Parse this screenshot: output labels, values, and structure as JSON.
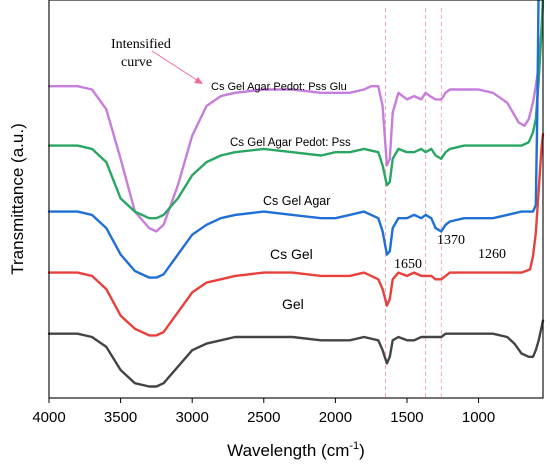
{
  "chart_data": {
    "type": "line",
    "xlabel": "Wavelength (cm",
    "xlabel_sup": "-1",
    "xlabel_close": ")",
    "ylabel": "Transmittance (a.u.)",
    "xlim": [
      4000,
      550
    ],
    "x_reversed": true,
    "x_ticks": [
      4000,
      3500,
      3000,
      2500,
      2000,
      1500,
      1000
    ],
    "y_ticks": "none",
    "grid": false,
    "reference_lines": [
      {
        "x": 1650,
        "label": "1650",
        "color": "#f4a6b8"
      },
      {
        "x": 1370,
        "label": "1370",
        "color": "#f4a6b8"
      },
      {
        "x": 1260,
        "label": "1260",
        "color": "#f4a6b8"
      }
    ],
    "annotation": {
      "text_line1": "Intensified",
      "text_line2": "curve",
      "arrow_color": "#f26b9e",
      "points_to": "Cs Gel Agar Pedot: Pss Glu"
    },
    "series": [
      {
        "name": "Cs Gel Agar Pedot: Pss Glu",
        "color": "#c77ddb",
        "offset": 0.86,
        "x": [
          4000,
          3800,
          3700,
          3600,
          3500,
          3400,
          3300,
          3250,
          3200,
          3100,
          3000,
          2900,
          2800,
          2700,
          2500,
          2300,
          2100,
          2000,
          1900,
          1800,
          1750,
          1700,
          1670,
          1640,
          1620,
          1600,
          1560,
          1500,
          1450,
          1400,
          1370,
          1340,
          1300,
          1260,
          1230,
          1200,
          1100,
          1000,
          900,
          800,
          720,
          680,
          650,
          620,
          600,
          580,
          560,
          550
        ],
        "y": [
          0.0,
          0.0,
          -0.01,
          -0.07,
          -0.22,
          -0.38,
          -0.43,
          -0.44,
          -0.42,
          -0.3,
          -0.15,
          -0.06,
          -0.03,
          -0.02,
          -0.01,
          -0.01,
          -0.02,
          -0.02,
          -0.02,
          -0.01,
          0.0,
          0.0,
          -0.06,
          -0.24,
          -0.22,
          -0.08,
          -0.02,
          -0.04,
          -0.03,
          -0.04,
          -0.02,
          -0.03,
          -0.04,
          -0.04,
          -0.02,
          -0.01,
          -0.01,
          -0.01,
          -0.02,
          -0.05,
          -0.11,
          -0.12,
          -0.1,
          -0.05,
          0.0,
          0.06,
          0.18,
          0.25
        ]
      },
      {
        "name": "Cs Gel Agar Pedot: Pss",
        "color": "#2aa663",
        "offset": 0.68,
        "x": [
          4000,
          3800,
          3700,
          3600,
          3500,
          3400,
          3300,
          3250,
          3200,
          3100,
          3000,
          2900,
          2800,
          2700,
          2500,
          2300,
          2100,
          2000,
          1900,
          1800,
          1700,
          1670,
          1640,
          1620,
          1600,
          1560,
          1500,
          1450,
          1400,
          1370,
          1330,
          1300,
          1260,
          1230,
          1200,
          1100,
          1000,
          900,
          800,
          700,
          650,
          620,
          600,
          580,
          560,
          550
        ],
        "y": [
          0.0,
          0.0,
          -0.01,
          -0.05,
          -0.16,
          -0.2,
          -0.22,
          -0.22,
          -0.21,
          -0.16,
          -0.09,
          -0.05,
          -0.03,
          -0.02,
          -0.01,
          -0.02,
          -0.03,
          -0.02,
          -0.02,
          -0.01,
          -0.02,
          -0.06,
          -0.12,
          -0.11,
          -0.04,
          -0.01,
          -0.02,
          -0.02,
          -0.01,
          -0.02,
          -0.01,
          -0.03,
          -0.04,
          -0.02,
          -0.01,
          0.0,
          0.0,
          0.0,
          0.0,
          0.0,
          0.01,
          0.04,
          0.08,
          0.2,
          0.35,
          0.45
        ]
      },
      {
        "name": "Cs Gel Agar",
        "color": "#1f6fd6",
        "offset": 0.48,
        "x": [
          4000,
          3800,
          3700,
          3600,
          3500,
          3400,
          3300,
          3250,
          3200,
          3100,
          3000,
          2900,
          2800,
          2700,
          2500,
          2300,
          2100,
          2000,
          1900,
          1800,
          1700,
          1670,
          1640,
          1620,
          1600,
          1560,
          1500,
          1450,
          1400,
          1370,
          1330,
          1300,
          1260,
          1230,
          1200,
          1100,
          1000,
          900,
          800,
          700,
          640,
          620,
          600,
          590,
          580,
          570,
          560,
          550
        ],
        "y": [
          0.0,
          0.0,
          -0.01,
          -0.05,
          -0.13,
          -0.18,
          -0.2,
          -0.2,
          -0.19,
          -0.13,
          -0.07,
          -0.04,
          -0.02,
          -0.01,
          0.0,
          -0.01,
          -0.02,
          -0.02,
          -0.01,
          0.0,
          -0.02,
          -0.06,
          -0.13,
          -0.12,
          -0.05,
          -0.02,
          -0.02,
          -0.01,
          -0.02,
          -0.01,
          -0.02,
          -0.05,
          -0.06,
          -0.04,
          -0.03,
          -0.02,
          -0.02,
          -0.02,
          -0.01,
          0.0,
          0.0,
          0.0,
          0.02,
          0.3,
          0.7,
          0.95,
          1.06,
          1.08
        ]
      },
      {
        "name": "Cs Gel",
        "color": "#e8403c",
        "offset": 0.295,
        "x": [
          4000,
          3800,
          3700,
          3600,
          3500,
          3400,
          3300,
          3250,
          3200,
          3100,
          3000,
          2900,
          2800,
          2700,
          2500,
          2300,
          2100,
          2000,
          1900,
          1800,
          1700,
          1670,
          1640,
          1620,
          1600,
          1560,
          1500,
          1450,
          1400,
          1370,
          1330,
          1300,
          1260,
          1230,
          1200,
          1100,
          1000,
          900,
          800,
          700,
          640,
          620,
          600,
          580,
          560,
          550
        ],
        "y": [
          0.0,
          0.0,
          -0.01,
          -0.05,
          -0.13,
          -0.17,
          -0.19,
          -0.19,
          -0.18,
          -0.12,
          -0.06,
          -0.03,
          -0.02,
          -0.01,
          0.0,
          0.0,
          -0.01,
          -0.01,
          -0.01,
          0.0,
          -0.02,
          -0.05,
          -0.1,
          -0.08,
          -0.02,
          0.0,
          -0.01,
          0.0,
          -0.01,
          -0.01,
          -0.01,
          -0.02,
          -0.02,
          -0.01,
          0.0,
          0.0,
          0.0,
          0.0,
          0.0,
          0.0,
          0.01,
          0.05,
          0.12,
          0.25,
          0.38,
          0.42
        ]
      },
      {
        "name": "Gel",
        "color": "#444444",
        "offset": 0.11,
        "x": [
          4000,
          3800,
          3700,
          3600,
          3500,
          3400,
          3300,
          3250,
          3200,
          3100,
          3000,
          2900,
          2800,
          2700,
          2500,
          2300,
          2100,
          2000,
          1900,
          1800,
          1700,
          1670,
          1640,
          1620,
          1600,
          1560,
          1500,
          1450,
          1400,
          1370,
          1330,
          1300,
          1260,
          1230,
          1200,
          1100,
          1000,
          900,
          800,
          750,
          700,
          650,
          620,
          600,
          580,
          560,
          550
        ],
        "y": [
          0.0,
          0.0,
          -0.01,
          -0.04,
          -0.11,
          -0.15,
          -0.16,
          -0.16,
          -0.15,
          -0.1,
          -0.05,
          -0.03,
          -0.02,
          -0.01,
          -0.01,
          -0.01,
          -0.02,
          -0.02,
          -0.02,
          -0.01,
          -0.02,
          -0.05,
          -0.09,
          -0.07,
          -0.02,
          -0.01,
          -0.02,
          -0.02,
          -0.01,
          -0.01,
          -0.01,
          -0.01,
          -0.01,
          0.0,
          0.0,
          0.0,
          0.0,
          0.0,
          -0.01,
          -0.03,
          -0.06,
          -0.07,
          -0.07,
          -0.05,
          -0.02,
          0.02,
          0.04
        ]
      }
    ]
  }
}
